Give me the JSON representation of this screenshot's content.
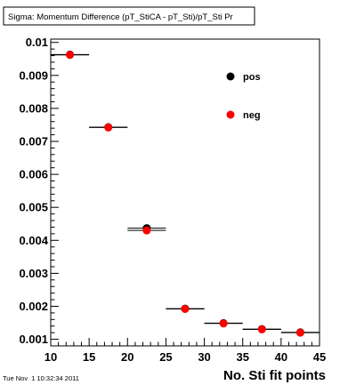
{
  "title": "Sigma: Momentum Difference (pT_StiCA - pT_Sti)/pT_Sti Pr",
  "timestamp": "Tue Nov  1 10:32:34 2011",
  "chart_data": {
    "type": "scatter",
    "title": "Sigma: Momentum Difference (pT_StiCA - pT_Sti)/pT_Sti Pr",
    "xlabel": "No. Sti fit points",
    "ylabel": "",
    "xlim": [
      10,
      45
    ],
    "ylim": [
      0.0008,
      0.0101
    ],
    "x_ticks": [
      10,
      15,
      20,
      25,
      30,
      35,
      40,
      45
    ],
    "y_ticks": [
      0.001,
      0.002,
      0.003,
      0.004,
      0.005,
      0.006,
      0.007,
      0.008,
      0.009,
      0.01
    ],
    "y_tick_labels": [
      "0.001",
      "0.002",
      "0.003",
      "0.004",
      "0.005",
      "0.006",
      "0.007",
      "0.008",
      "0.009",
      "0.01"
    ],
    "bin_width": 5,
    "grid": false,
    "legend_position": "top-right",
    "series": [
      {
        "name": "pos",
        "color": "#000000",
        "x": [
          12.5,
          17.5,
          22.5,
          27.5,
          32.5,
          37.5,
          42.5
        ],
        "y": [
          0.00963,
          0.00743,
          0.00437,
          0.00193,
          0.00149,
          0.00131,
          0.00121
        ]
      },
      {
        "name": "neg",
        "color": "#ff0000",
        "x": [
          12.5,
          17.5,
          22.5,
          27.5,
          32.5,
          37.5,
          42.5
        ],
        "y": [
          0.00962,
          0.00742,
          0.0043,
          0.00192,
          0.00148,
          0.0013,
          0.0012
        ]
      }
    ]
  }
}
